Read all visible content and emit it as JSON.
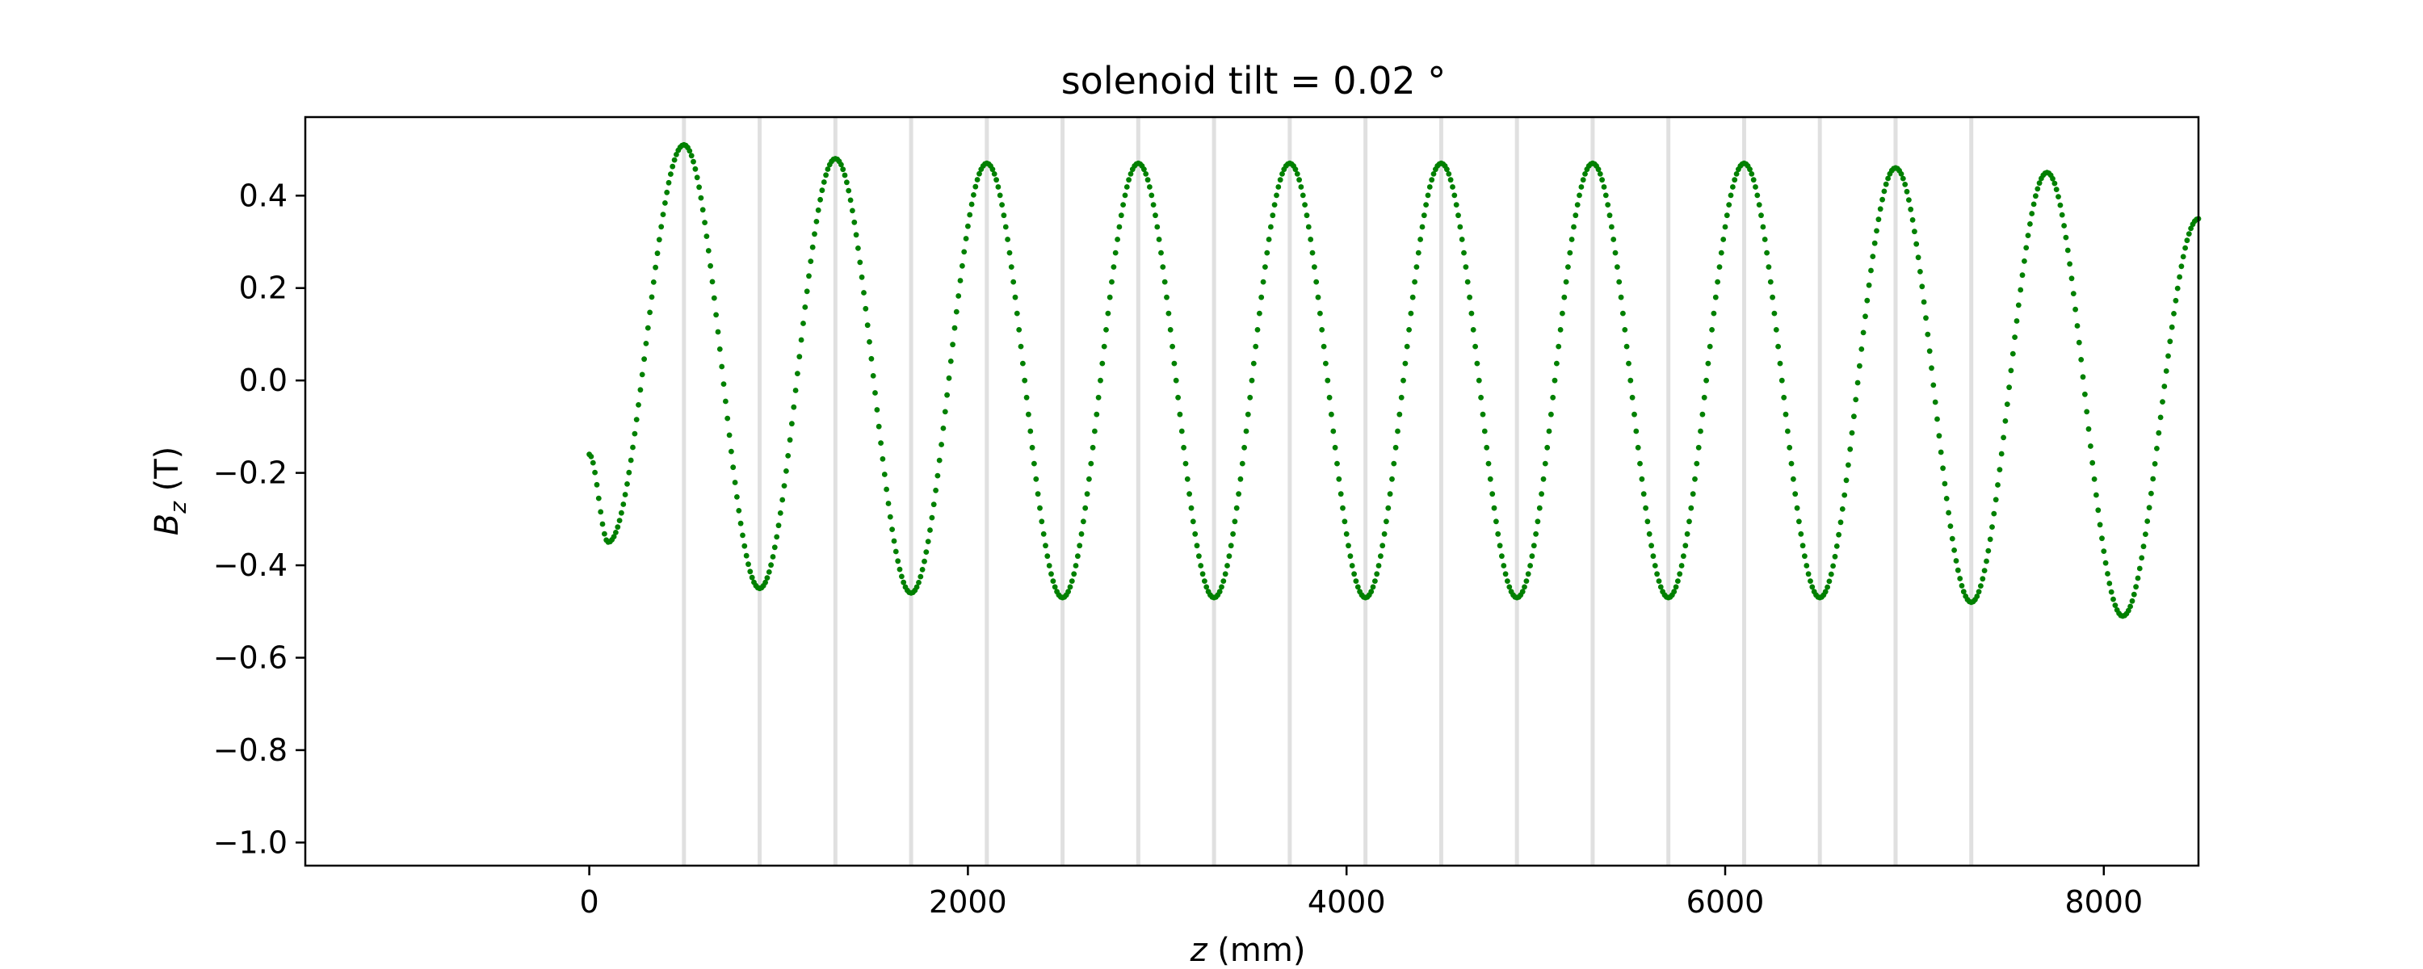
{
  "chart_data": {
    "type": "scatter",
    "title": "solenoid tilt = 0.02 °",
    "xlabel_var": "z",
    "xlabel_unit": " (mm)",
    "ylabel_var": "B",
    "ylabel_sub": "z",
    "ylabel_unit": " (T)",
    "xlim": [
      -1500,
      8500
    ],
    "ylim": [
      -1.05,
      0.57
    ],
    "x_ticks": [
      0,
      2000,
      4000,
      6000,
      8000
    ],
    "x_tick_labels": [
      "0",
      "2000",
      "4000",
      "6000",
      "8000"
    ],
    "y_ticks": [
      -1.0,
      -0.8,
      -0.6,
      -0.4,
      -0.2,
      0.0,
      0.2,
      0.4
    ],
    "y_tick_labels": [
      "−1.0",
      "−0.8",
      "−0.6",
      "−0.4",
      "−0.2",
      "0.0",
      "0.2",
      "0.4"
    ],
    "grid": false,
    "vertical_lines_x": [
      500,
      900,
      1300,
      1700,
      2100,
      2500,
      2900,
      3300,
      3700,
      4100,
      4500,
      4900,
      5300,
      5700,
      6100,
      6500,
      6900,
      7300
    ],
    "vertical_line_color": "#e0e0e0",
    "series": [
      {
        "color": "#008000",
        "marker": "dot",
        "extrema": [
          {
            "x": 0,
            "y": -0.16
          },
          {
            "x": 100,
            "y": -0.35
          },
          {
            "x": 500,
            "y": 0.51
          },
          {
            "x": 900,
            "y": -0.45
          },
          {
            "x": 1300,
            "y": 0.48
          },
          {
            "x": 1700,
            "y": -0.46
          },
          {
            "x": 2100,
            "y": 0.47
          },
          {
            "x": 2500,
            "y": -0.47
          },
          {
            "x": 2900,
            "y": 0.47
          },
          {
            "x": 3300,
            "y": -0.47
          },
          {
            "x": 3700,
            "y": 0.47
          },
          {
            "x": 4100,
            "y": -0.47
          },
          {
            "x": 4500,
            "y": 0.47
          },
          {
            "x": 4900,
            "y": -0.47
          },
          {
            "x": 5300,
            "y": 0.47
          },
          {
            "x": 5700,
            "y": -0.47
          },
          {
            "x": 6100,
            "y": 0.47
          },
          {
            "x": 6500,
            "y": -0.47
          },
          {
            "x": 6900,
            "y": 0.46
          },
          {
            "x": 7300,
            "y": -0.48
          },
          {
            "x": 7700,
            "y": 0.45
          },
          {
            "x": 8100,
            "y": -0.51
          },
          {
            "x": 8500,
            "y": 0.35
          }
        ]
      }
    ]
  }
}
